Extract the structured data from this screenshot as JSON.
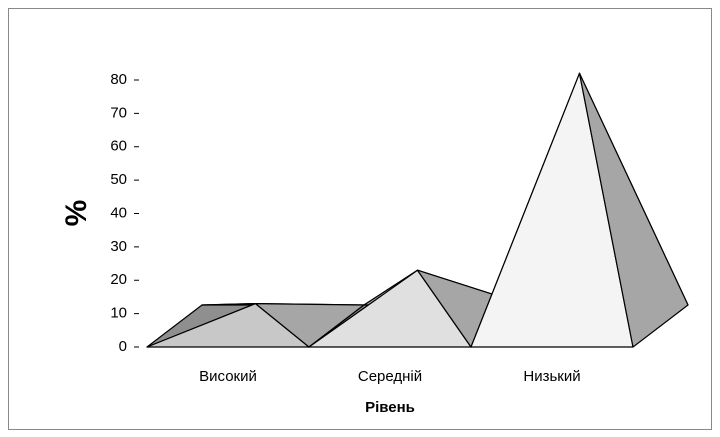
{
  "chart_data": {
    "type": "pyramid",
    "categories": [
      "Високий",
      "Середній",
      "Низький"
    ],
    "values": [
      13,
      23,
      82
    ],
    "colors": [
      "#c8c8c8",
      "#e0e0e0",
      "#f4f4f4"
    ],
    "side_color": "#a6a6a6",
    "back_color": "#8f8f8f",
    "ylabel": "%",
    "xlabel": "Рівень",
    "ylim": [
      0,
      80
    ],
    "yticks": [
      0,
      10,
      20,
      30,
      40,
      50,
      60,
      70,
      80
    ]
  }
}
